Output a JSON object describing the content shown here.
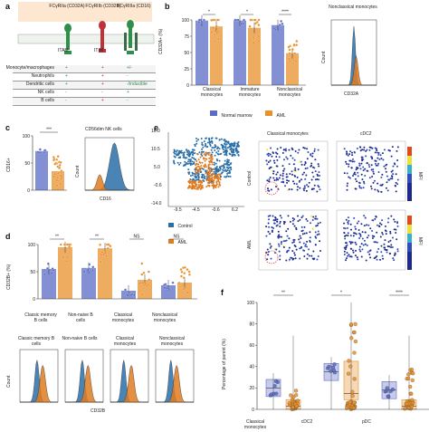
{
  "colors": {
    "normal": "#5b6bc6",
    "aml": "#e8902c",
    "flow_blue": "#2a6fa8",
    "flow_orange": "#e07b20",
    "receptor_green": "#2f8f4a",
    "receptor_red": "#c0323a",
    "header_bg": "#fde7d0"
  },
  "panel_a": {
    "label": "a",
    "receptors": [
      "FCγRIIa (CD32A)",
      "FCγRIIb (CD32B)",
      "FCγRIIIa (CD16)"
    ],
    "motifs": [
      "ITAM",
      "ITIM"
    ],
    "rows": [
      {
        "cell": "Monocyte/macrophages",
        "marks": [
          "+",
          "+",
          "+/-"
        ]
      },
      {
        "cell": "Neutrophils",
        "marks": [
          "+",
          "+",
          "-"
        ]
      },
      {
        "cell": "Dendritic cells",
        "marks": [
          "+",
          "+",
          "-/inducible"
        ]
      },
      {
        "cell": "NK cells",
        "marks": [
          "-",
          "-",
          "+"
        ]
      },
      {
        "cell": "B cells",
        "marks": [
          "-",
          "+",
          "-"
        ]
      }
    ]
  },
  "panel_b": {
    "label": "b",
    "ylabel": "CD32A+ (%)",
    "sig": [
      "*",
      "*",
      "****"
    ],
    "legend": [
      "Normal marrow",
      "AML"
    ],
    "inset_title": "Nonclassical monocytes",
    "inset_xlabel": "CD32A",
    "inset_ylabel": "Count"
  },
  "panel_c": {
    "label": "c",
    "ylabel": "CD16+",
    "sig": "***",
    "inset_title": "CD56dim NK cells",
    "inset_xlabel": "CD16",
    "inset_ylabel": "Count"
  },
  "panel_e": {
    "label": "e",
    "legend": [
      "Control",
      "AML"
    ],
    "col_titles": [
      "Classical monocytes",
      "cDC2"
    ],
    "row_labels": [
      "Control",
      "AML"
    ],
    "scale_label": "MFI"
  },
  "panel_d": {
    "label": "d",
    "ylabel": "CD32B+ (%)",
    "sig": [
      "**",
      "**",
      "NS",
      "NS"
    ],
    "groups": [
      "Classic memory B cells",
      "Non-naive B cells",
      "Classical monocytes",
      "Nonclassical monocytes"
    ],
    "hist_titles": [
      "Classic memory B cells",
      "Non-naive B cells",
      "Classical monocytes",
      "Nonclassical monocytes"
    ],
    "hist_xlabel": "CD32B",
    "hist_ylabel": "Count"
  },
  "panel_f": {
    "label": "f",
    "ylabel": "Percentage of parent (%)",
    "sig": [
      "**",
      "*",
      "****"
    ],
    "groups": [
      "Classical monocytes",
      "cDC2",
      "pDC"
    ]
  },
  "chart_data": [
    {
      "panel": "b",
      "type": "bar",
      "categories": [
        "Classical monocytes",
        "Immature monocytes",
        "Nonclassical monocytes"
      ],
      "series": [
        {
          "name": "Normal marrow",
          "values": [
            99,
            99,
            92
          ]
        },
        {
          "name": "AML",
          "values": [
            90,
            88,
            49
          ]
        }
      ],
      "ylabel": "CD32A+ (%)",
      "ylim": [
        0,
        100
      ],
      "yticks": [
        0,
        25,
        50,
        75,
        100
      ]
    },
    {
      "panel": "c",
      "type": "bar",
      "categories": [
        "Normal marrow",
        "AML"
      ],
      "values": [
        72,
        35
      ],
      "ylabel": "CD16+",
      "ylim": [
        0,
        100
      ],
      "yticks": [
        0,
        50,
        100
      ]
    },
    {
      "panel": "d",
      "type": "bar",
      "categories": [
        "Classic memory B cells",
        "Non-naive B cells",
        "Classical monocytes",
        "Nonclassical monocytes"
      ],
      "series": [
        {
          "name": "Normal marrow",
          "values": [
            55,
            57,
            15,
            25
          ]
        },
        {
          "name": "AML",
          "values": [
            95,
            93,
            35,
            30
          ]
        }
      ],
      "ylabel": "CD32B+ (%)",
      "ylim": [
        0,
        100
      ],
      "yticks": [
        0,
        50,
        100
      ]
    },
    {
      "panel": "f",
      "type": "box",
      "categories": [
        "Classical monocytes",
        "cDC2",
        "pDC"
      ],
      "series": [
        {
          "name": "Normal marrow",
          "values": [
            20,
            35,
            18
          ]
        },
        {
          "name": "AML",
          "values": [
            3,
            15,
            3
          ]
        }
      ],
      "ylabel": "Percentage of parent (%)",
      "ylim": [
        0,
        100
      ],
      "yticks": [
        0,
        20,
        40,
        60,
        80,
        100
      ]
    },
    {
      "panel": "e",
      "type": "scatter",
      "xticks": [
        "-9.5",
        "-4.5",
        "-0.6",
        "6.2"
      ],
      "yticks": [
        "16.0",
        "10.5",
        "5.0",
        "-0.6",
        "-14.0"
      ]
    }
  ]
}
